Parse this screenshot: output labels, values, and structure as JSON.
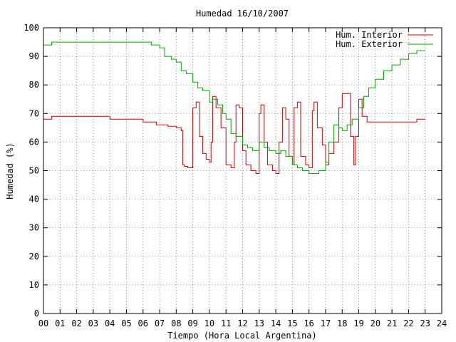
{
  "chart_data": {
    "type": "line",
    "title": "Humedad 16/10/2007",
    "xlabel": "Tiempo (Hora Local Argentina)",
    "ylabel": "Humedad (%)",
    "xlim": [
      0,
      24
    ],
    "ylim": [
      0,
      100
    ],
    "x_ticks": [
      "00",
      "01",
      "02",
      "03",
      "04",
      "05",
      "06",
      "07",
      "08",
      "09",
      "10",
      "11",
      "12",
      "13",
      "14",
      "15",
      "16",
      "17",
      "18",
      "19",
      "20",
      "21",
      "22",
      "23",
      "24"
    ],
    "y_ticks": [
      "0",
      "10",
      "20",
      "30",
      "40",
      "50",
      "60",
      "70",
      "80",
      "90",
      "100"
    ],
    "grid": true,
    "legend": "top-right",
    "series": [
      {
        "name": "Hum. Interior",
        "color": "#cc0000",
        "x": [
          0,
          0.5,
          1,
          1.5,
          2,
          3,
          4,
          4.8,
          5,
          6,
          6.8,
          7,
          7.5,
          8,
          8.3,
          8.4,
          8.5,
          8.7,
          9,
          9.2,
          9.4,
          9.6,
          9.8,
          10,
          10.1,
          10.2,
          10.4,
          10.7,
          11,
          11.3,
          11.5,
          11.6,
          11.8,
          12,
          12.2,
          12.5,
          12.8,
          13,
          13.1,
          13.3,
          13.5,
          13.8,
          14,
          14.2,
          14.4,
          14.6,
          14.8,
          15,
          15.1,
          15.3,
          15.5,
          15.8,
          16,
          16.2,
          16.3,
          16.5,
          16.8,
          17,
          17.2,
          17.5,
          17.8,
          18,
          18.3,
          18.5,
          18.7,
          18.8,
          19,
          19.2,
          19.5,
          20,
          20.5,
          21,
          21.5,
          22,
          22.5,
          23
        ],
        "y": [
          68,
          69,
          69,
          69,
          69,
          69,
          68,
          68,
          68,
          67,
          66,
          66,
          65.5,
          65,
          64,
          52,
          51.5,
          51,
          72,
          74,
          62,
          56,
          54,
          53,
          60,
          76,
          72,
          65,
          52,
          51,
          60,
          73,
          72,
          57,
          52,
          50,
          49,
          70,
          73,
          60,
          52,
          50,
          49,
          60,
          72,
          68,
          55,
          52,
          72,
          74,
          55,
          52,
          51,
          71,
          74,
          65,
          59,
          52,
          56,
          60,
          72,
          77,
          77,
          62,
          52,
          62,
          75,
          69,
          67,
          67,
          67,
          67,
          67,
          67,
          68,
          68
        ]
      },
      {
        "name": "Hum. Exterior",
        "color": "#00aa00",
        "x": [
          0,
          0.5,
          1,
          2,
          3,
          4,
          5,
          6,
          6.5,
          7,
          7.3,
          7.7,
          8,
          8.3,
          8.6,
          9,
          9.3,
          9.6,
          10,
          10.2,
          10.5,
          10.8,
          11,
          11.3,
          11.6,
          12,
          12.3,
          12.6,
          13,
          13.3,
          13.6,
          14,
          14.3,
          14.6,
          15,
          15.3,
          15.6,
          16,
          16.3,
          16.6,
          17,
          17.2,
          17.5,
          17.8,
          18,
          18.3,
          18.6,
          19,
          19.3,
          19.6,
          20,
          20.5,
          21,
          21.5,
          22,
          22.5,
          23
        ],
        "y": [
          94,
          95,
          95,
          95,
          95,
          95,
          95,
          95,
          94,
          93,
          90,
          89,
          88,
          85,
          84,
          81,
          79,
          78,
          74,
          75,
          73,
          70,
          68,
          63,
          62,
          59,
          58,
          57,
          60,
          58,
          57,
          56,
          57,
          55,
          52,
          51,
          50,
          49,
          49,
          50,
          53,
          60,
          66,
          65,
          64,
          66,
          68,
          72,
          76,
          79,
          82,
          85,
          87,
          89,
          91,
          92,
          92
        ]
      }
    ]
  }
}
